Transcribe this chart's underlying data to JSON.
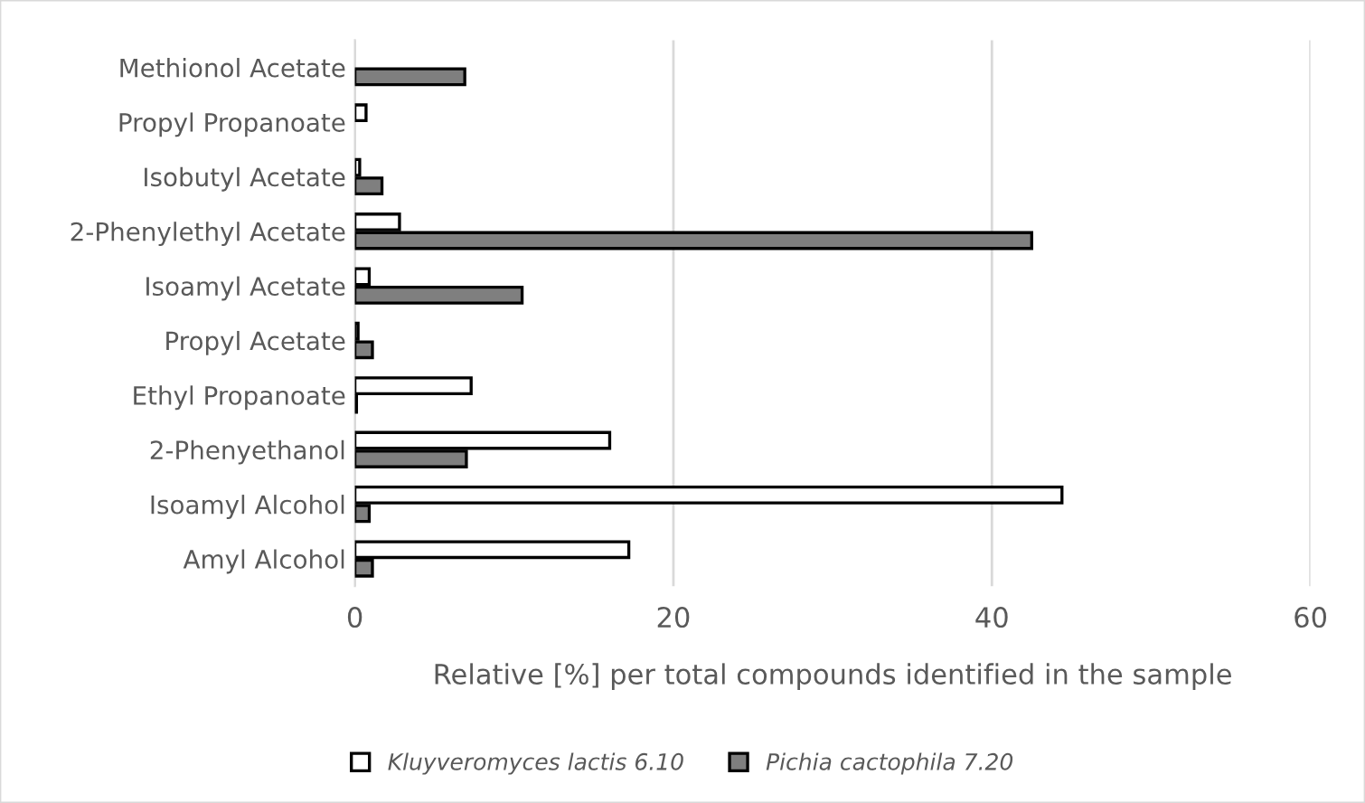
{
  "chart_data": {
    "type": "bar",
    "orientation": "horizontal",
    "xlabel": "Relative [%] per total compounds identified in the sample",
    "categories": [
      "Methionol Acetate",
      "Propyl Propanoate",
      "Isobutyl Acetate",
      "2-Phenylethyl Acetate",
      "Isoamyl Acetate",
      "Propyl Acetate",
      "Ethyl Propanoate",
      "2-Phenyethanol",
      "Isoamyl Alcohol",
      "Amyl Alcohol"
    ],
    "series": [
      {
        "name": "Kluyveromyces lactis 6.10",
        "color": "#ffffff",
        "values": [
          null,
          0.7,
          0.3,
          2.8,
          0.9,
          0.2,
          7.3,
          16.0,
          44.4,
          17.2
        ]
      },
      {
        "name": "Pichia cactophila 7.20",
        "color": "#7f7f7f",
        "values": [
          6.9,
          null,
          1.7,
          42.5,
          10.5,
          1.1,
          0.1,
          7.0,
          0.9,
          1.1
        ]
      }
    ],
    "xlim": [
      0,
      60
    ],
    "xticks": [
      0,
      20,
      40,
      60
    ],
    "grid": "x",
    "legend": "bottom"
  }
}
